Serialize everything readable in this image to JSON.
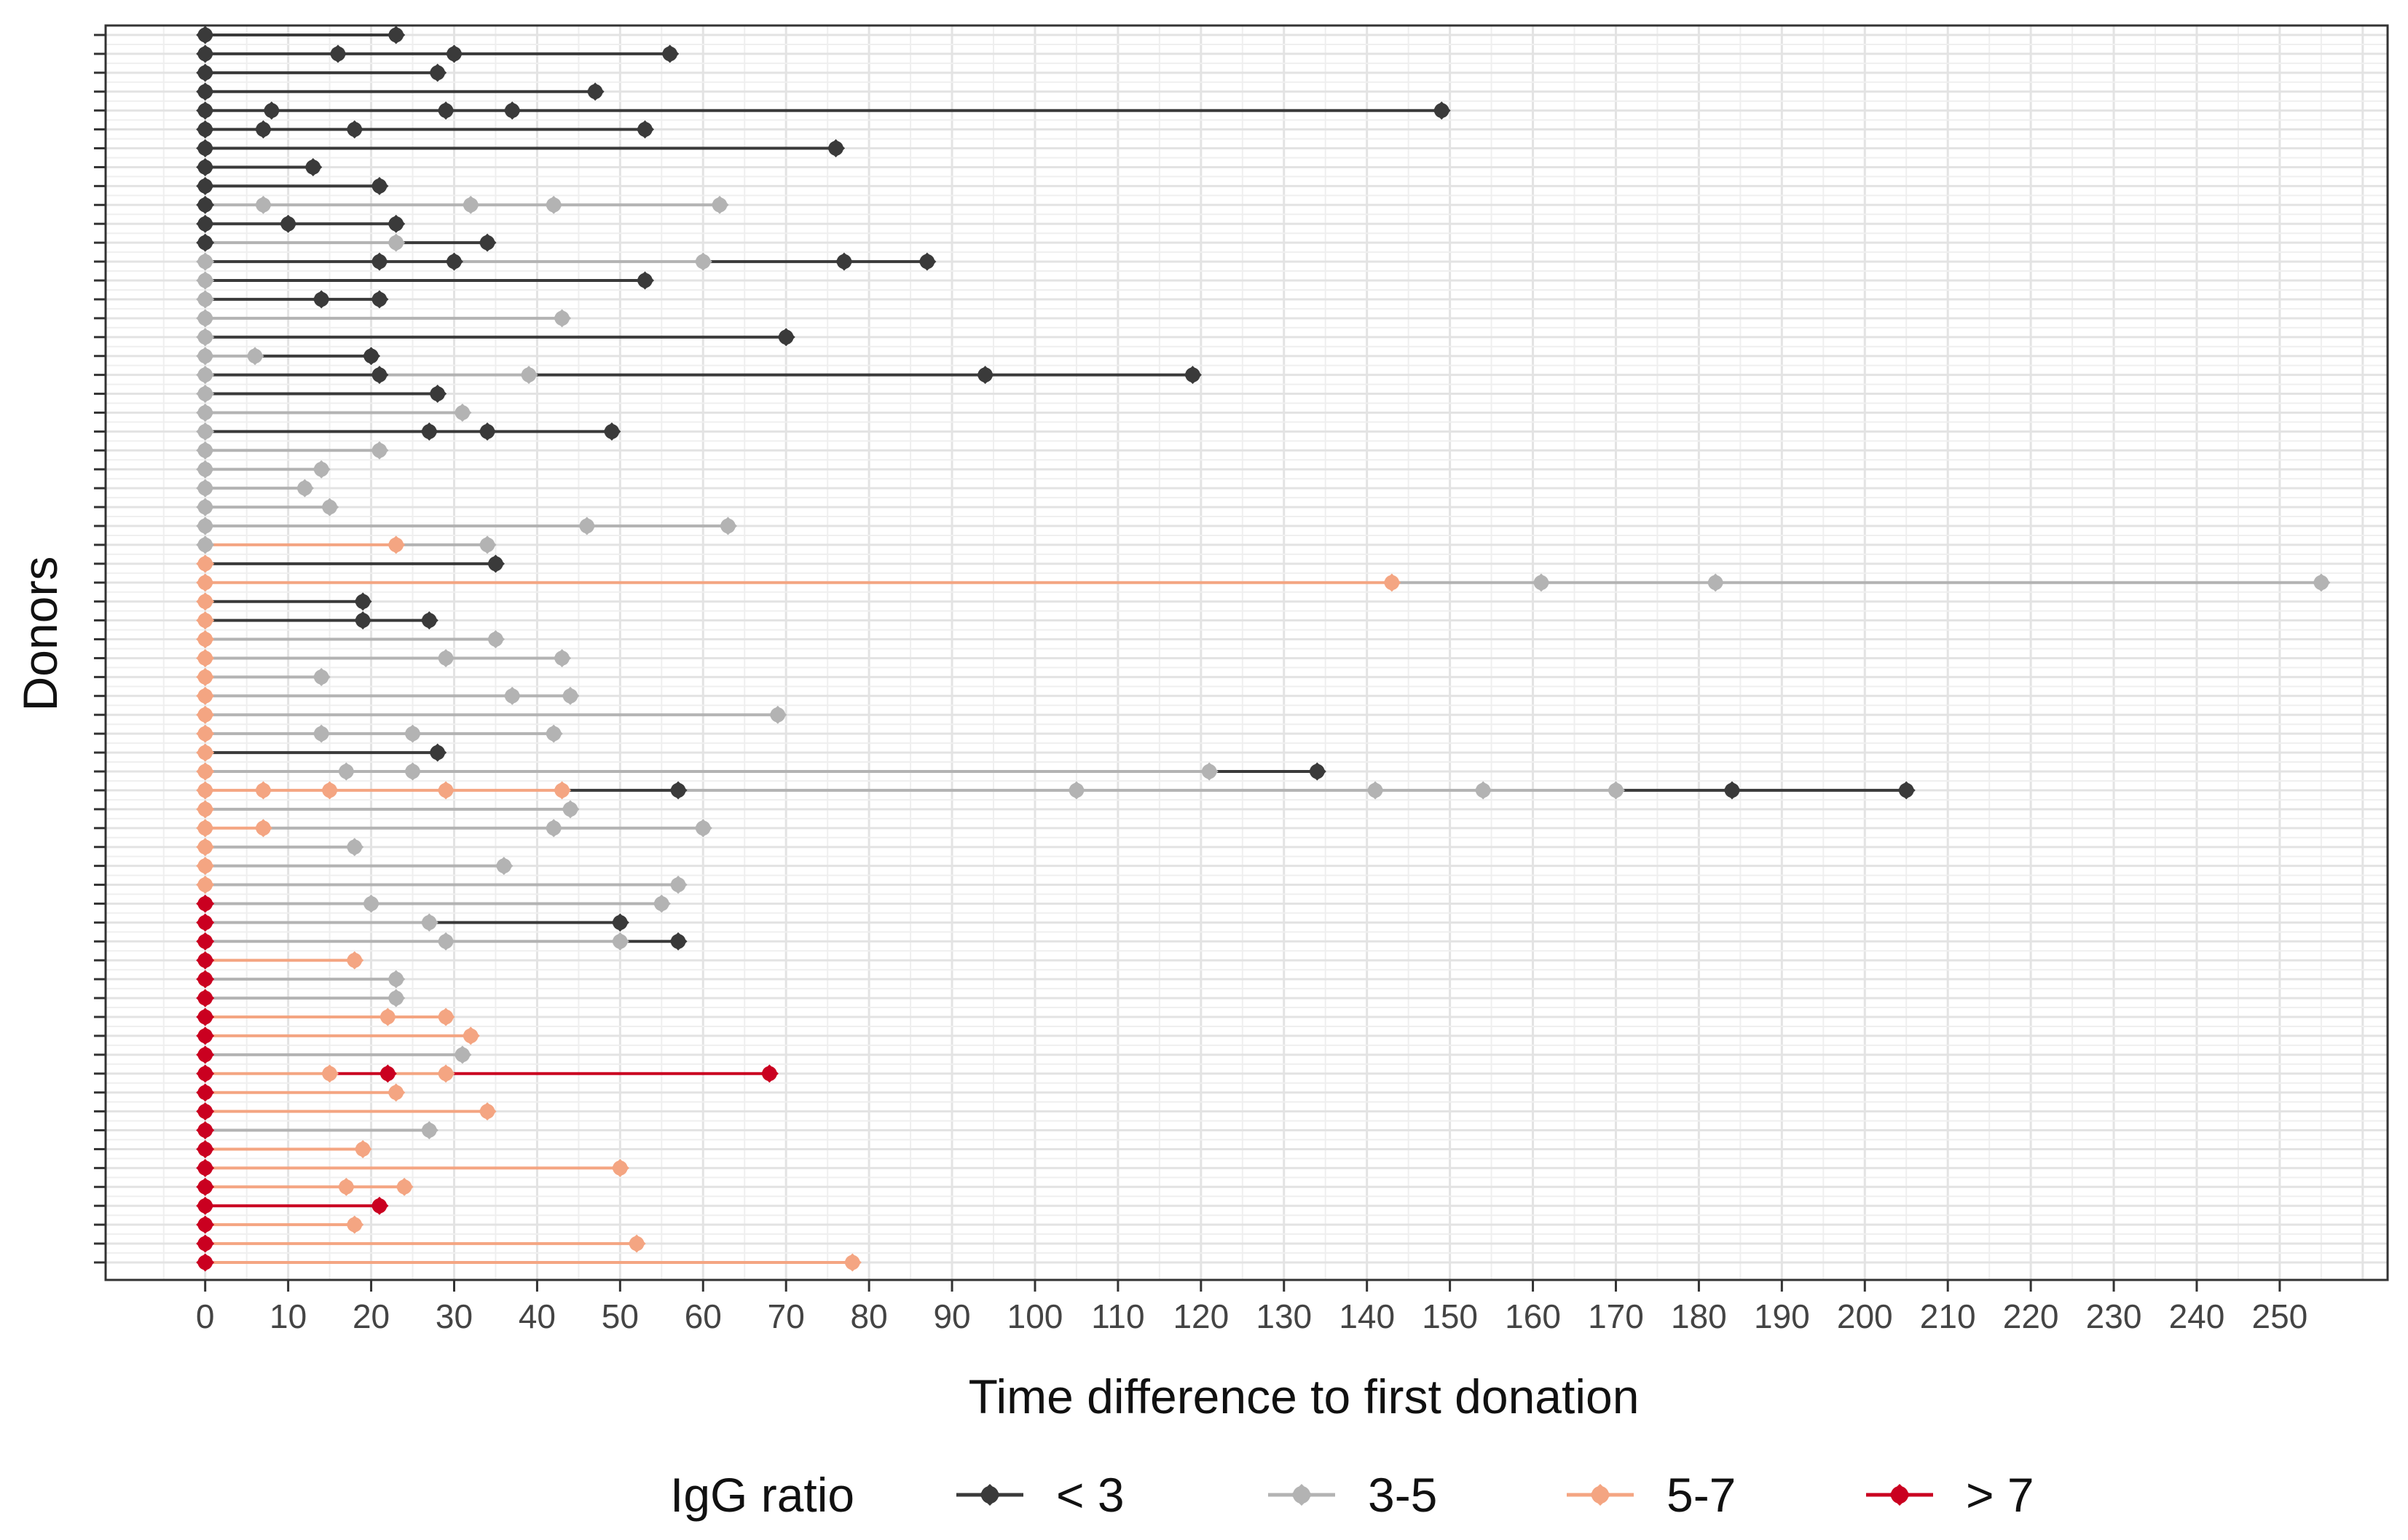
{
  "chart_data": {
    "type": "line",
    "subtype": "timeline-dot-segments",
    "xlabel": "Time difference to first donation",
    "ylabel": "Donors",
    "xlim": [
      -12,
      263
    ],
    "x_ticks": [
      0,
      10,
      20,
      30,
      40,
      50,
      60,
      70,
      80,
      90,
      100,
      110,
      120,
      130,
      140,
      150,
      160,
      170,
      180,
      190,
      200,
      210,
      220,
      230,
      240,
      250
    ],
    "grid": true,
    "legend": {
      "title": "IgG ratio",
      "placement": "bottom",
      "entries": [
        {
          "label": "< 3",
          "color": "#3a3a3a",
          "class": "lt3"
        },
        {
          "label": "3-5",
          "color": "#b3b3b3",
          "class": "r35"
        },
        {
          "label": "5-7",
          "color": "#f4a582",
          "class": "r57"
        },
        {
          "label": "> 7",
          "color": "#ca0020",
          "class": "gt7"
        }
      ]
    },
    "donors": [
      {
        "id": 1,
        "points": [
          {
            "x": 0,
            "c": "lt3"
          },
          {
            "x": 23,
            "c": "lt3"
          }
        ]
      },
      {
        "id": 2,
        "points": [
          {
            "x": 0,
            "c": "lt3"
          },
          {
            "x": 16,
            "c": "lt3"
          },
          {
            "x": 30,
            "c": "lt3"
          },
          {
            "x": 56,
            "c": "lt3"
          }
        ]
      },
      {
        "id": 3,
        "points": [
          {
            "x": 0,
            "c": "lt3"
          },
          {
            "x": 28,
            "c": "lt3"
          }
        ]
      },
      {
        "id": 4,
        "points": [
          {
            "x": 0,
            "c": "lt3"
          },
          {
            "x": 47,
            "c": "lt3"
          }
        ]
      },
      {
        "id": 5,
        "points": [
          {
            "x": 0,
            "c": "lt3"
          },
          {
            "x": 8,
            "c": "lt3"
          },
          {
            "x": 29,
            "c": "lt3"
          },
          {
            "x": 37,
            "c": "lt3"
          },
          {
            "x": 149,
            "c": "lt3"
          }
        ]
      },
      {
        "id": 6,
        "points": [
          {
            "x": 0,
            "c": "lt3"
          },
          {
            "x": 7,
            "c": "lt3"
          },
          {
            "x": 18,
            "c": "lt3"
          },
          {
            "x": 53,
            "c": "lt3"
          }
        ]
      },
      {
        "id": 7,
        "points": [
          {
            "x": 0,
            "c": "lt3"
          },
          {
            "x": 76,
            "c": "lt3"
          }
        ]
      },
      {
        "id": 8,
        "points": [
          {
            "x": 0,
            "c": "lt3"
          },
          {
            "x": 13,
            "c": "lt3"
          }
        ]
      },
      {
        "id": 9,
        "points": [
          {
            "x": 0,
            "c": "lt3"
          },
          {
            "x": 21,
            "c": "lt3"
          }
        ]
      },
      {
        "id": 10,
        "points": [
          {
            "x": 0,
            "c": "lt3"
          },
          {
            "x": 7,
            "c": "r35"
          },
          {
            "x": 32,
            "c": "r35"
          },
          {
            "x": 42,
            "c": "r35"
          },
          {
            "x": 62,
            "c": "r35"
          }
        ]
      },
      {
        "id": 11,
        "points": [
          {
            "x": 0,
            "c": "lt3"
          },
          {
            "x": 10,
            "c": "lt3"
          },
          {
            "x": 23,
            "c": "lt3"
          }
        ]
      },
      {
        "id": 12,
        "points": [
          {
            "x": 0,
            "c": "lt3"
          },
          {
            "x": 23,
            "c": "r35"
          },
          {
            "x": 34,
            "c": "lt3"
          }
        ]
      },
      {
        "id": 13,
        "points": [
          {
            "x": 0,
            "c": "r35"
          },
          {
            "x": 21,
            "c": "lt3"
          },
          {
            "x": 30,
            "c": "lt3"
          },
          {
            "x": 60,
            "c": "r35"
          },
          {
            "x": 77,
            "c": "lt3"
          },
          {
            "x": 87,
            "c": "lt3"
          }
        ]
      },
      {
        "id": 14,
        "points": [
          {
            "x": 0,
            "c": "r35"
          },
          {
            "x": 53,
            "c": "lt3"
          }
        ]
      },
      {
        "id": 15,
        "points": [
          {
            "x": 0,
            "c": "r35"
          },
          {
            "x": 14,
            "c": "lt3"
          },
          {
            "x": 21,
            "c": "lt3"
          }
        ]
      },
      {
        "id": 16,
        "points": [
          {
            "x": 0,
            "c": "r35"
          },
          {
            "x": 43,
            "c": "r35"
          }
        ]
      },
      {
        "id": 17,
        "points": [
          {
            "x": 0,
            "c": "r35"
          },
          {
            "x": 70,
            "c": "lt3"
          }
        ]
      },
      {
        "id": 18,
        "points": [
          {
            "x": 0,
            "c": "r35"
          },
          {
            "x": 6,
            "c": "r35"
          },
          {
            "x": 20,
            "c": "lt3"
          }
        ]
      },
      {
        "id": 19,
        "points": [
          {
            "x": 0,
            "c": "r35"
          },
          {
            "x": 21,
            "c": "lt3"
          },
          {
            "x": 39,
            "c": "r35"
          },
          {
            "x": 94,
            "c": "lt3"
          },
          {
            "x": 119,
            "c": "lt3"
          }
        ]
      },
      {
        "id": 20,
        "points": [
          {
            "x": 0,
            "c": "r35"
          },
          {
            "x": 28,
            "c": "lt3"
          }
        ]
      },
      {
        "id": 21,
        "points": [
          {
            "x": 0,
            "c": "r35"
          },
          {
            "x": 31,
            "c": "r35"
          }
        ]
      },
      {
        "id": 22,
        "points": [
          {
            "x": 0,
            "c": "r35"
          },
          {
            "x": 27,
            "c": "lt3"
          },
          {
            "x": 34,
            "c": "lt3"
          },
          {
            "x": 49,
            "c": "lt3"
          }
        ]
      },
      {
        "id": 23,
        "points": [
          {
            "x": 0,
            "c": "r35"
          },
          {
            "x": 21,
            "c": "r35"
          }
        ]
      },
      {
        "id": 24,
        "points": [
          {
            "x": 0,
            "c": "r35"
          },
          {
            "x": 14,
            "c": "r35"
          }
        ]
      },
      {
        "id": 25,
        "points": [
          {
            "x": 0,
            "c": "r35"
          },
          {
            "x": 12,
            "c": "r35"
          }
        ]
      },
      {
        "id": 26,
        "points": [
          {
            "x": 0,
            "c": "r35"
          },
          {
            "x": 15,
            "c": "r35"
          }
        ]
      },
      {
        "id": 27,
        "points": [
          {
            "x": 0,
            "c": "r35"
          },
          {
            "x": 46,
            "c": "r35"
          },
          {
            "x": 63,
            "c": "r35"
          }
        ]
      },
      {
        "id": 28,
        "points": [
          {
            "x": 0,
            "c": "r35"
          },
          {
            "x": 23,
            "c": "r57"
          },
          {
            "x": 34,
            "c": "r35"
          }
        ]
      },
      {
        "id": 29,
        "points": [
          {
            "x": 0,
            "c": "r57"
          },
          {
            "x": 35,
            "c": "lt3"
          }
        ]
      },
      {
        "id": 30,
        "points": [
          {
            "x": 0,
            "c": "r57"
          },
          {
            "x": 143,
            "c": "r57"
          },
          {
            "x": 161,
            "c": "r35"
          },
          {
            "x": 182,
            "c": "r35"
          },
          {
            "x": 255,
            "c": "r35"
          }
        ]
      },
      {
        "id": 31,
        "points": [
          {
            "x": 0,
            "c": "r57"
          },
          {
            "x": 19,
            "c": "lt3"
          }
        ]
      },
      {
        "id": 32,
        "points": [
          {
            "x": 0,
            "c": "r57"
          },
          {
            "x": 19,
            "c": "lt3"
          },
          {
            "x": 27,
            "c": "lt3"
          }
        ]
      },
      {
        "id": 33,
        "points": [
          {
            "x": 0,
            "c": "r57"
          },
          {
            "x": 35,
            "c": "r35"
          }
        ]
      },
      {
        "id": 34,
        "points": [
          {
            "x": 0,
            "c": "r57"
          },
          {
            "x": 29,
            "c": "r35"
          },
          {
            "x": 43,
            "c": "r35"
          }
        ]
      },
      {
        "id": 35,
        "points": [
          {
            "x": 0,
            "c": "r57"
          },
          {
            "x": 14,
            "c": "r35"
          }
        ]
      },
      {
        "id": 36,
        "points": [
          {
            "x": 0,
            "c": "r57"
          },
          {
            "x": 37,
            "c": "r35"
          },
          {
            "x": 44,
            "c": "r35"
          }
        ]
      },
      {
        "id": 37,
        "points": [
          {
            "x": 0,
            "c": "r57"
          },
          {
            "x": 69,
            "c": "r35"
          }
        ]
      },
      {
        "id": 38,
        "points": [
          {
            "x": 0,
            "c": "r57"
          },
          {
            "x": 14,
            "c": "r35"
          },
          {
            "x": 25,
            "c": "r35"
          },
          {
            "x": 42,
            "c": "r35"
          }
        ]
      },
      {
        "id": 39,
        "points": [
          {
            "x": 0,
            "c": "r57"
          },
          {
            "x": 28,
            "c": "lt3"
          }
        ]
      },
      {
        "id": 40,
        "points": [
          {
            "x": 0,
            "c": "r57"
          },
          {
            "x": 17,
            "c": "r35"
          },
          {
            "x": 25,
            "c": "r35"
          },
          {
            "x": 121,
            "c": "r35"
          },
          {
            "x": 134,
            "c": "lt3"
          }
        ]
      },
      {
        "id": 41,
        "points": [
          {
            "x": 0,
            "c": "r57"
          },
          {
            "x": 7,
            "c": "r57"
          },
          {
            "x": 15,
            "c": "r57"
          },
          {
            "x": 29,
            "c": "r57"
          },
          {
            "x": 43,
            "c": "r57"
          },
          {
            "x": 57,
            "c": "lt3"
          },
          {
            "x": 105,
            "c": "r35"
          },
          {
            "x": 141,
            "c": "r35"
          },
          {
            "x": 154,
            "c": "r35"
          },
          {
            "x": 170,
            "c": "r35"
          },
          {
            "x": 184,
            "c": "lt3"
          },
          {
            "x": 205,
            "c": "lt3"
          }
        ]
      },
      {
        "id": 42,
        "points": [
          {
            "x": 0,
            "c": "r57"
          },
          {
            "x": 44,
            "c": "r35"
          }
        ]
      },
      {
        "id": 43,
        "points": [
          {
            "x": 0,
            "c": "r57"
          },
          {
            "x": 7,
            "c": "r57"
          },
          {
            "x": 42,
            "c": "r35"
          },
          {
            "x": 60,
            "c": "r35"
          }
        ]
      },
      {
        "id": 44,
        "points": [
          {
            "x": 0,
            "c": "r57"
          },
          {
            "x": 18,
            "c": "r35"
          }
        ]
      },
      {
        "id": 45,
        "points": [
          {
            "x": 0,
            "c": "r57"
          },
          {
            "x": 36,
            "c": "r35"
          }
        ]
      },
      {
        "id": 46,
        "points": [
          {
            "x": 0,
            "c": "r57"
          },
          {
            "x": 57,
            "c": "r35"
          }
        ]
      },
      {
        "id": 47,
        "points": [
          {
            "x": 0,
            "c": "gt7"
          },
          {
            "x": 20,
            "c": "r35"
          },
          {
            "x": 55,
            "c": "r35"
          }
        ]
      },
      {
        "id": 48,
        "points": [
          {
            "x": 0,
            "c": "gt7"
          },
          {
            "x": 27,
            "c": "r35"
          },
          {
            "x": 50,
            "c": "lt3"
          }
        ]
      },
      {
        "id": 49,
        "points": [
          {
            "x": 0,
            "c": "gt7"
          },
          {
            "x": 29,
            "c": "r35"
          },
          {
            "x": 50,
            "c": "r35"
          },
          {
            "x": 57,
            "c": "lt3"
          }
        ]
      },
      {
        "id": 50,
        "points": [
          {
            "x": 0,
            "c": "gt7"
          },
          {
            "x": 18,
            "c": "r57"
          }
        ]
      },
      {
        "id": 51,
        "points": [
          {
            "x": 0,
            "c": "gt7"
          },
          {
            "x": 23,
            "c": "r35"
          }
        ]
      },
      {
        "id": 52,
        "points": [
          {
            "x": 0,
            "c": "gt7"
          },
          {
            "x": 23,
            "c": "r35"
          }
        ]
      },
      {
        "id": 53,
        "points": [
          {
            "x": 0,
            "c": "gt7"
          },
          {
            "x": 22,
            "c": "r57"
          },
          {
            "x": 29,
            "c": "r57"
          }
        ]
      },
      {
        "id": 54,
        "points": [
          {
            "x": 0,
            "c": "gt7"
          },
          {
            "x": 32,
            "c": "r57"
          }
        ]
      },
      {
        "id": 55,
        "points": [
          {
            "x": 0,
            "c": "gt7"
          },
          {
            "x": 31,
            "c": "r35"
          }
        ]
      },
      {
        "id": 56,
        "points": [
          {
            "x": 0,
            "c": "gt7"
          },
          {
            "x": 15,
            "c": "r57"
          },
          {
            "x": 22,
            "c": "gt7"
          },
          {
            "x": 29,
            "c": "r57"
          },
          {
            "x": 68,
            "c": "gt7"
          }
        ]
      },
      {
        "id": 57,
        "points": [
          {
            "x": 0,
            "c": "gt7"
          },
          {
            "x": 23,
            "c": "r57"
          }
        ]
      },
      {
        "id": 58,
        "points": [
          {
            "x": 0,
            "c": "gt7"
          },
          {
            "x": 34,
            "c": "r57"
          }
        ]
      },
      {
        "id": 59,
        "points": [
          {
            "x": 0,
            "c": "gt7"
          },
          {
            "x": 27,
            "c": "r35"
          }
        ]
      },
      {
        "id": 60,
        "points": [
          {
            "x": 0,
            "c": "gt7"
          },
          {
            "x": 19,
            "c": "r57"
          }
        ]
      },
      {
        "id": 61,
        "points": [
          {
            "x": 0,
            "c": "gt7"
          },
          {
            "x": 50,
            "c": "r57"
          }
        ]
      },
      {
        "id": 62,
        "points": [
          {
            "x": 0,
            "c": "gt7"
          },
          {
            "x": 17,
            "c": "r57"
          },
          {
            "x": 24,
            "c": "r57"
          }
        ]
      },
      {
        "id": 63,
        "points": [
          {
            "x": 0,
            "c": "gt7"
          },
          {
            "x": 21,
            "c": "gt7"
          }
        ]
      },
      {
        "id": 64,
        "points": [
          {
            "x": 0,
            "c": "gt7"
          },
          {
            "x": 18,
            "c": "r57"
          }
        ]
      },
      {
        "id": 65,
        "points": [
          {
            "x": 0,
            "c": "gt7"
          },
          {
            "x": 52,
            "c": "r57"
          }
        ]
      },
      {
        "id": 66,
        "points": [
          {
            "x": 0,
            "c": "gt7"
          },
          {
            "x": 78,
            "c": "r57"
          }
        ]
      }
    ]
  }
}
